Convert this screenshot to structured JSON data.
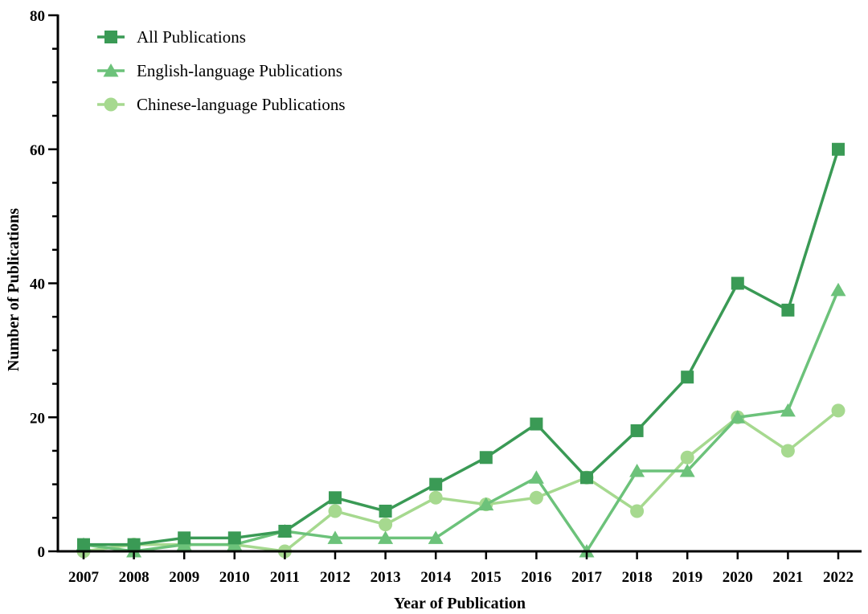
{
  "chart_data": {
    "type": "line",
    "title": "",
    "xlabel": "Year of Publication",
    "ylabel": "Number of Publications",
    "ylim": [
      0,
      80
    ],
    "yticks": [
      0,
      20,
      40,
      60,
      80
    ],
    "categories": [
      "2007",
      "2008",
      "2009",
      "2010",
      "2011",
      "2012",
      "2013",
      "2014",
      "2015",
      "2016",
      "2017",
      "2018",
      "2019",
      "2020",
      "2021",
      "2022"
    ],
    "grid": false,
    "legend_position": "top-left",
    "series": [
      {
        "name": "All Publications",
        "marker": "square",
        "color": "#3a9a55",
        "values": [
          1,
          1,
          2,
          2,
          3,
          8,
          6,
          10,
          14,
          19,
          11,
          18,
          26,
          40,
          36,
          60
        ]
      },
      {
        "name": "English-language Publications",
        "marker": "triangle",
        "color": "#6cc27a",
        "values": [
          1,
          0,
          1,
          1,
          3,
          2,
          2,
          2,
          7,
          11,
          0,
          12,
          12,
          20,
          21,
          39
        ]
      },
      {
        "name": "Chinese-language Publications",
        "marker": "circle",
        "color": "#a6d98f",
        "values": [
          0,
          1,
          1,
          1,
          0,
          6,
          4,
          8,
          7,
          8,
          11,
          6,
          14,
          20,
          15,
          21
        ]
      }
    ]
  }
}
